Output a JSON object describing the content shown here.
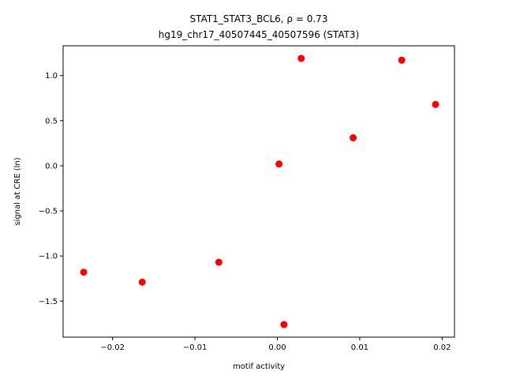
{
  "chart_data": {
    "type": "scatter",
    "title_line1": "STAT1_STAT3_BCL6, ρ = 0.73",
    "title_line2": "hg19_chr17_40507445_40507596 (STAT3)",
    "xlabel": "motif activity",
    "ylabel": "signal at CRE (ln)",
    "xlim": [
      -0.026,
      0.0215
    ],
    "ylim": [
      -1.9,
      1.33
    ],
    "xticks": [
      -0.02,
      -0.01,
      0.0,
      0.01,
      0.02
    ],
    "xtick_labels": [
      "−0.02",
      "−0.01",
      "0.00",
      "0.01",
      "0.02"
    ],
    "yticks": [
      -1.5,
      -1.0,
      -0.5,
      0.0,
      0.5,
      1.0
    ],
    "ytick_labels": [
      "−1.5",
      "−1.0",
      "−0.5",
      "0.0",
      "0.5",
      "1.0"
    ],
    "marker_color": "#ff0000",
    "points": [
      {
        "x": -0.0235,
        "y": -1.18
      },
      {
        "x": -0.0164,
        "y": -1.29
      },
      {
        "x": -0.0071,
        "y": -1.07
      },
      {
        "x": 0.0002,
        "y": 0.02
      },
      {
        "x": 0.0008,
        "y": -1.76
      },
      {
        "x": 0.0029,
        "y": 1.19
      },
      {
        "x": 0.0092,
        "y": 0.31
      },
      {
        "x": 0.0151,
        "y": 1.17
      },
      {
        "x": 0.0192,
        "y": 0.68
      }
    ]
  }
}
